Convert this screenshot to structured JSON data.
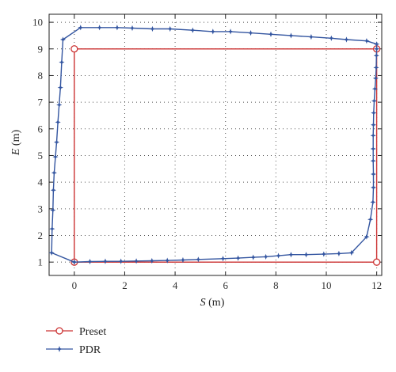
{
  "chart_data": {
    "type": "line",
    "title": "",
    "xlabel": "S (m)",
    "ylabel": "E (m)",
    "xlabel_var": "S",
    "xlabel_unit": " (m)",
    "ylabel_var": "E",
    "ylabel_unit": " (m)",
    "xlim": [
      -1,
      12.2
    ],
    "ylim": [
      0.5,
      10.3
    ],
    "xticks": [
      0,
      2,
      4,
      6,
      8,
      10,
      12
    ],
    "yticks": [
      1,
      2,
      3,
      4,
      5,
      6,
      7,
      8,
      9,
      10
    ],
    "grid": true,
    "legend_placement": "bottom-left, below plot",
    "series": [
      {
        "name": "Preset",
        "color": "#cc3333",
        "marker": "circle-open",
        "x": [
          0,
          12,
          12,
          0,
          0
        ],
        "y": [
          1,
          1,
          9,
          9,
          1
        ]
      },
      {
        "name": "PDR",
        "color": "#3355a0",
        "marker": "star",
        "x": [
          0.0,
          0.62,
          1.23,
          1.85,
          2.46,
          3.08,
          3.69,
          4.31,
          4.92,
          5.9,
          6.5,
          7.1,
          7.6,
          8.1,
          8.6,
          9.2,
          9.9,
          10.5,
          11.0,
          11.6,
          11.75,
          11.85,
          11.87,
          11.87,
          11.86,
          11.86,
          11.86,
          11.87,
          11.88,
          11.9,
          11.93,
          11.96,
          11.98,
          11.99,
          12.0,
          12.0,
          11.6,
          10.8,
          10.2,
          9.4,
          8.6,
          7.8,
          7.0,
          6.2,
          5.5,
          4.7,
          3.8,
          3.1,
          2.3,
          1.7,
          1.0,
          0.25,
          -0.45,
          -0.5,
          -0.55,
          -0.6,
          -0.65,
          -0.7,
          -0.75,
          -0.8,
          -0.83,
          -0.85,
          -0.88,
          -0.9,
          0.0
        ],
        "y": [
          1.0,
          1.02,
          1.03,
          1.03,
          1.04,
          1.05,
          1.06,
          1.08,
          1.1,
          1.13,
          1.15,
          1.18,
          1.2,
          1.24,
          1.28,
          1.28,
          1.3,
          1.32,
          1.35,
          1.95,
          2.6,
          3.25,
          3.8,
          4.3,
          4.8,
          5.25,
          5.75,
          6.15,
          6.6,
          7.05,
          7.5,
          7.9,
          8.3,
          8.75,
          9.0,
          9.18,
          9.3,
          9.35,
          9.4,
          9.45,
          9.5,
          9.55,
          9.6,
          9.65,
          9.65,
          9.7,
          9.75,
          9.75,
          9.78,
          9.8,
          9.8,
          9.8,
          9.35,
          8.5,
          7.55,
          6.9,
          6.25,
          5.5,
          4.95,
          4.35,
          3.7,
          2.95,
          2.25,
          1.35,
          1.0
        ]
      }
    ]
  }
}
